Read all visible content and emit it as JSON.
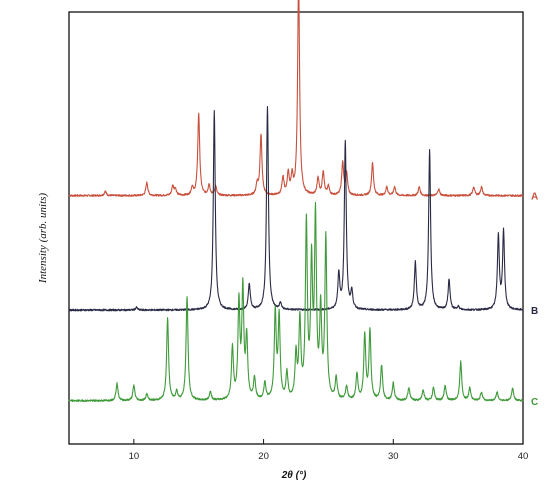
{
  "chart_data": {
    "type": "line",
    "xlabel": "2θ (°)",
    "ylabel": "Intensity (arb. units)",
    "xlim": [
      5,
      40
    ],
    "xticks": [
      10,
      20,
      30,
      40
    ],
    "ylim": [
      0,
      1
    ],
    "grid": false,
    "legend": "series labels at right end of each trace",
    "series": [
      {
        "name": "A",
        "color": "#c8503c",
        "baseline": 0.575,
        "peaks": [
          [
            7.8,
            0.01
          ],
          [
            11.0,
            0.03
          ],
          [
            13.0,
            0.022
          ],
          [
            13.2,
            0.015
          ],
          [
            14.5,
            0.018
          ],
          [
            15.0,
            0.19
          ],
          [
            15.8,
            0.025
          ],
          [
            16.3,
            0.022
          ],
          [
            19.5,
            0.025
          ],
          [
            19.8,
            0.14
          ],
          [
            21.5,
            0.04
          ],
          [
            21.9,
            0.05
          ],
          [
            22.2,
            0.04
          ],
          [
            22.7,
            0.5
          ],
          [
            24.2,
            0.04
          ],
          [
            24.6,
            0.055
          ],
          [
            25.0,
            0.02
          ],
          [
            26.1,
            0.075
          ],
          [
            26.4,
            0.05
          ],
          [
            28.4,
            0.075
          ],
          [
            29.5,
            0.02
          ],
          [
            30.1,
            0.02
          ],
          [
            32.0,
            0.02
          ],
          [
            33.5,
            0.015
          ],
          [
            36.2,
            0.02
          ],
          [
            36.8,
            0.02
          ]
        ]
      },
      {
        "name": "B",
        "color": "#2a2a45",
        "baseline": 0.31,
        "peaks": [
          [
            10.2,
            0.006
          ],
          [
            16.2,
            0.46
          ],
          [
            18.9,
            0.06
          ],
          [
            20.3,
            0.47
          ],
          [
            21.3,
            0.015
          ],
          [
            25.8,
            0.08
          ],
          [
            26.3,
            0.39
          ],
          [
            26.8,
            0.04
          ],
          [
            31.7,
            0.11
          ],
          [
            32.8,
            0.37
          ],
          [
            34.3,
            0.07
          ],
          [
            35.0,
            0.008
          ],
          [
            38.1,
            0.17
          ],
          [
            38.5,
            0.18
          ]
        ]
      },
      {
        "name": "C",
        "color": "#3f9a3a",
        "baseline": 0.1,
        "peaks": [
          [
            8.7,
            0.04
          ],
          [
            10.0,
            0.035
          ],
          [
            11.0,
            0.015
          ],
          [
            12.6,
            0.19
          ],
          [
            13.3,
            0.02
          ],
          [
            14.1,
            0.24
          ],
          [
            15.9,
            0.02
          ],
          [
            17.6,
            0.12
          ],
          [
            18.1,
            0.22
          ],
          [
            18.4,
            0.25
          ],
          [
            18.7,
            0.14
          ],
          [
            19.3,
            0.05
          ],
          [
            20.1,
            0.04
          ],
          [
            20.9,
            0.2
          ],
          [
            21.2,
            0.19
          ],
          [
            21.8,
            0.06
          ],
          [
            22.5,
            0.1
          ],
          [
            22.8,
            0.18
          ],
          [
            23.3,
            0.4
          ],
          [
            23.7,
            0.3
          ],
          [
            24.0,
            0.41
          ],
          [
            24.4,
            0.2
          ],
          [
            24.8,
            0.37
          ],
          [
            25.6,
            0.05
          ],
          [
            26.4,
            0.03
          ],
          [
            27.2,
            0.06
          ],
          [
            27.8,
            0.15
          ],
          [
            28.2,
            0.16
          ],
          [
            29.1,
            0.08
          ],
          [
            30.0,
            0.04
          ],
          [
            31.2,
            0.03
          ],
          [
            32.3,
            0.025
          ],
          [
            33.1,
            0.03
          ],
          [
            34.0,
            0.035
          ],
          [
            35.2,
            0.09
          ],
          [
            35.9,
            0.03
          ],
          [
            36.8,
            0.02
          ],
          [
            38.0,
            0.02
          ],
          [
            39.2,
            0.03
          ]
        ]
      }
    ]
  }
}
